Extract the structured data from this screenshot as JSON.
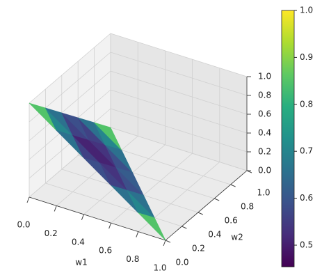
{
  "chart_data": {
    "type": "surface3d",
    "xlabel": "w1",
    "ylabel": "w2",
    "x": [
      0,
      0.2,
      0.4,
      0.6,
      0.8,
      {
        "value": 1,
        "label": "1.0"
      }
    ],
    "y": [
      0,
      0.2,
      0.4,
      0.6,
      0.8,
      1
    ],
    "z": [
      [
        1,
        0.8,
        0.6,
        0.4,
        0.2,
        0
      ],
      [
        0.8,
        0.6,
        0.4,
        0.2,
        0,
        null
      ],
      [
        0.6,
        0.4,
        0.2,
        0,
        null,
        null
      ],
      [
        0.4,
        0.2,
        0,
        null,
        null,
        null
      ],
      [
        0.2,
        0,
        null,
        null,
        null,
        null
      ],
      [
        0,
        null,
        null,
        null,
        null,
        null
      ]
    ],
    "c": [
      [
        1,
        0.772,
        0.637,
        0.637,
        0.772,
        1
      ],
      [
        0.772,
        0.562,
        0.48,
        0.562,
        0.772,
        null
      ],
      [
        0.637,
        0.48,
        0.562,
        0.637,
        null,
        null
      ],
      [
        0.637,
        0.562,
        0.637,
        null,
        null,
        null
      ],
      [
        0.772,
        0.772,
        null,
        null,
        null,
        null
      ],
      [
        1,
        null,
        null,
        null,
        null,
        null
      ]
    ],
    "colormap": "viridis",
    "clim": [
      0.454,
      1
    ],
    "xlim": [
      0,
      1
    ],
    "ylim": [
      0,
      1
    ],
    "zlim": [
      0,
      1
    ],
    "xticks": [
      {
        "value": 0,
        "label": "0.0"
      },
      0.2,
      0.4,
      0.6,
      0.8,
      {
        "value": 1,
        "label": "1.0"
      }
    ],
    "yticks": [
      {
        "value": 0,
        "label": "0.0"
      },
      0.2,
      0.4,
      0.6,
      0.8,
      {
        "value": 1,
        "label": "1.0"
      }
    ],
    "zticks": [
      {
        "value": 0,
        "label": "0.0"
      },
      0.2,
      0.4,
      0.6,
      0.8,
      {
        "value": 1,
        "label": "1.0"
      }
    ],
    "cticks": [
      0.5,
      0.6,
      0.7,
      0.8,
      0.9,
      {
        "value": 1,
        "label": "1.0"
      }
    ],
    "grid": true
  }
}
